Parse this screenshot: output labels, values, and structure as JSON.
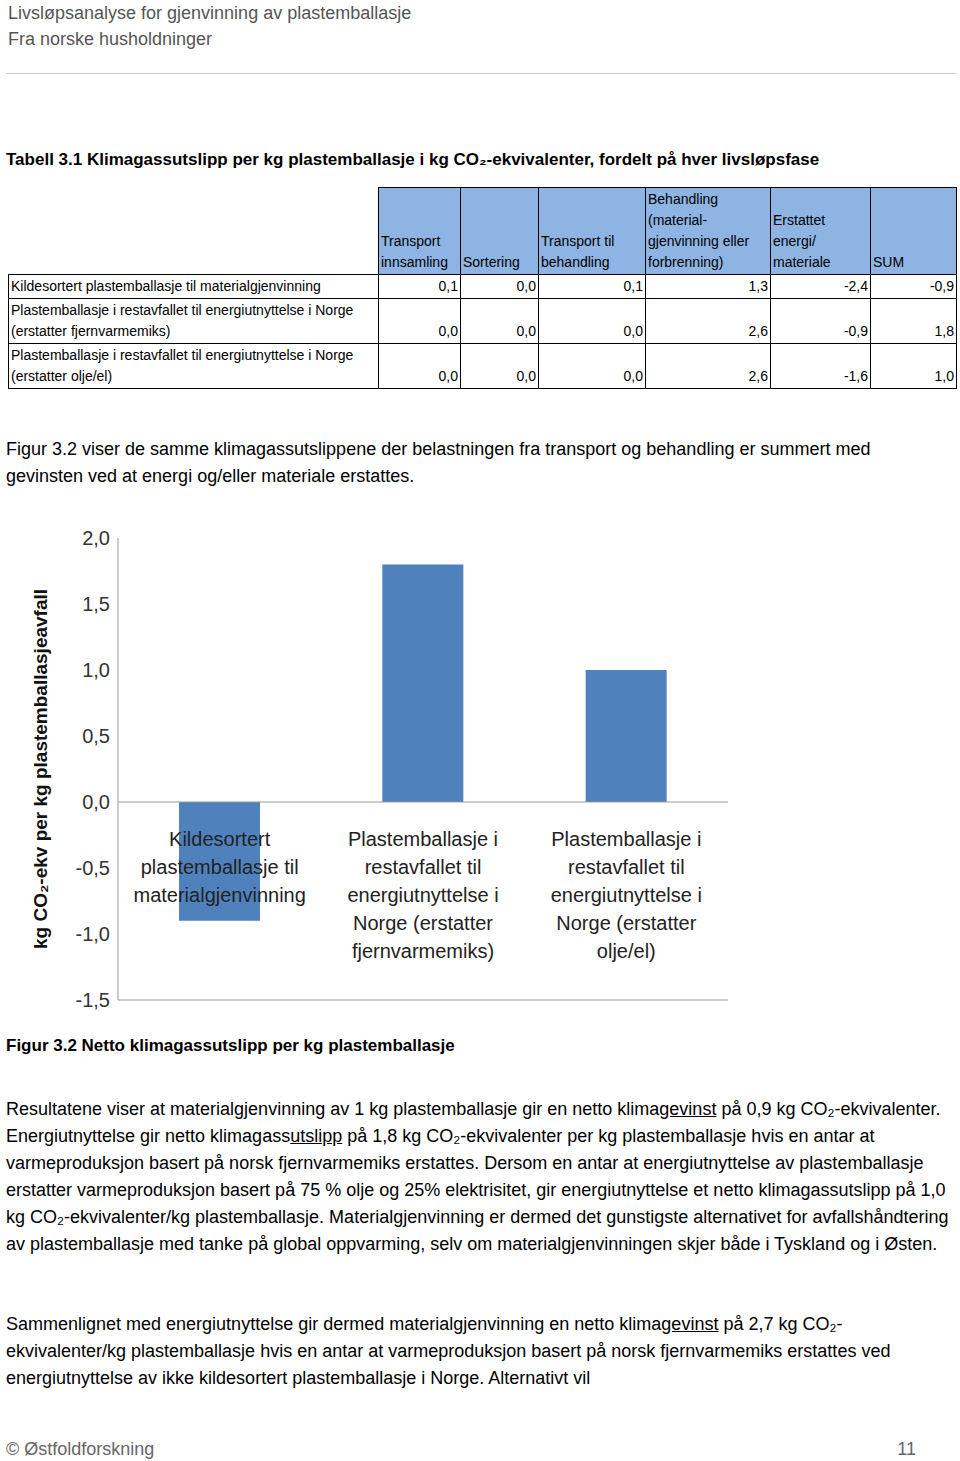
{
  "header": {
    "title": "Livsløpsanalyse for gjenvinning av plastemballasje",
    "subtitle": "Fra norske husholdninger"
  },
  "table": {
    "title": "Tabell 3.1 Klimagassutslipp per kg plastemballasje i kg CO₂-ekvivalenter, fordelt på hver livsløpsfase",
    "columns": [
      "",
      "Transport innsamling",
      "Sortering",
      "Transport til behandling",
      "Behandling (material-gjenvinning eller forbrenning)",
      "Erstattet energi/ materiale",
      "SUM"
    ],
    "rows": [
      [
        "Kildesortert plastemballasje til materialgjenvinning",
        "0,1",
        "0,0",
        "0,1",
        "1,3",
        "-2,4",
        "-0,9"
      ],
      [
        "Plastemballasje i restavfallet til energiutnyttelse i Norge (erstatter fjernvarmemiks)",
        "0,0",
        "0,0",
        "0,0",
        "2,6",
        "-0,9",
        "1,8"
      ],
      [
        "Plastemballasje i restavfallet til energiutnyttelse i Norge (erstatter olje/el)",
        "0,0",
        "0,0",
        "0,0",
        "2,6",
        "-1,6",
        "1,0"
      ]
    ]
  },
  "intro": "Figur 3.2 viser de samme klimagassutslippene der belastningen fra transport og behandling er summert med gevinsten ved at energi og/eller materiale erstattes.",
  "chart_data": {
    "type": "bar",
    "y_label": "kg CO₂-ekv per kg plastemballasjeavfall",
    "categories": [
      "Kildesortert plastemballasje til materialgjenvinning",
      "Plastemballasje i restavfallet til energiutnyttelse i Norge (erstatter fjernvarmemiks)",
      "Plastemballasje i restavfallet til energiutnyttelse i Norge (erstatter olje/el)"
    ],
    "values": [
      -0.9,
      1.8,
      1.0
    ],
    "color": "#4f81bd",
    "ylim": [
      -1.5,
      2.0
    ],
    "yticks": [
      {
        "value": -1.5,
        "label": "-1,5"
      },
      {
        "value": -1.0,
        "label": "-1,0"
      },
      {
        "value": -0.5,
        "label": "-0,5"
      },
      {
        "value": 0,
        "label": "0,0"
      },
      {
        "value": 0.5,
        "label": "0,5"
      },
      {
        "value": 1.0,
        "label": "1,0"
      },
      {
        "value": 1.5,
        "label": "1,5"
      },
      {
        "value": 2.0,
        "label": "2,0"
      }
    ],
    "grid": false
  },
  "caption": "Figur 3.2 Netto klimagassutslipp per kg plastemballasje",
  "paragraphs": [
    [
      "Resultatene viser at materialgjenvinning av 1 kg plastemballasje gir en netto klima",
      {
        "text": "gevinst",
        "underline": true
      },
      " på 0,9 kg CO₂-ekvivalenter. Energiutnyttelse gir netto klimagass",
      {
        "text": "utslipp",
        "underline": true
      },
      " på 1,8 kg CO₂-ekvivalenter per kg plastemballasje hvis en antar at varmeproduksjon basert på norsk fjernvarmemiks erstattes. Dersom en antar at energiutnyttelse av plastemballasje erstatter varmeproduksjon basert på 75 % olje og 25% elektrisitet, gir energiutnyttelse et netto klimagassutslipp på 1,0 kg CO₂-ekvivalenter/kg plastemballasje. Materialgjenvinning er dermed det gunstigste alternativet for avfallshåndtering av plastemballasje med tanke på global oppvarming, selv om materialgjenvinningen skjer både i Tyskland og i Østen."
    ],
    [
      "Sammenlignet med energiutnyttelse gir dermed materialgjenvinning en netto klima",
      {
        "text": "gevinst",
        "underline": true
      },
      " på 2,7 kg CO₂-ekvivalenter/kg plastemballasje hvis en antar at varmeproduksjon basert på norsk fjernvarmemiks erstattes ved energiutnyttelse av ikke kildesortert plastemballasje i Norge. Alternativt vil"
    ]
  ],
  "footer": {
    "left": "© Østfoldforskning",
    "page": "11"
  }
}
